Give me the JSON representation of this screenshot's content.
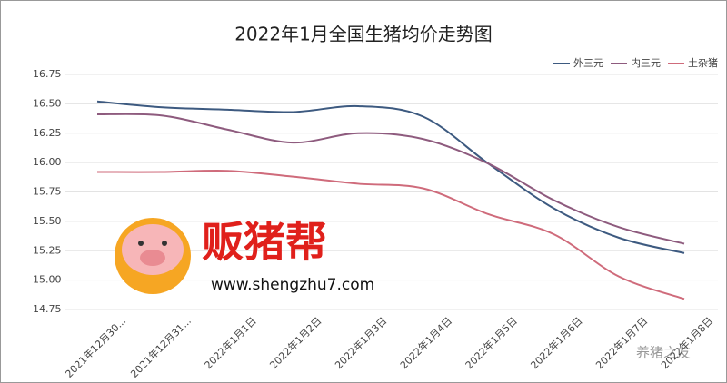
{
  "chart_data": {
    "type": "line",
    "title": "2022年1月全国生猪均价走势图",
    "categories": [
      "2021年12月30...",
      "2021年12月31...",
      "2022年1月1日",
      "2022年1月2日",
      "2022年1月3日",
      "2022年1月4日",
      "2022年1月5日",
      "2022年1月6日",
      "2022年1月7日",
      "2022年1月8日"
    ],
    "series": [
      {
        "name": "外三元",
        "color": "#3d5a80",
        "values": [
          16.52,
          16.47,
          16.45,
          16.43,
          16.48,
          16.39,
          15.99,
          15.61,
          15.36,
          15.23
        ]
      },
      {
        "name": "内三元",
        "color": "#8e5b7e",
        "values": [
          16.41,
          16.4,
          16.28,
          16.17,
          16.25,
          16.2,
          15.99,
          15.68,
          15.45,
          15.31
        ]
      },
      {
        "name": "土杂猪",
        "color": "#cf6b7b",
        "values": [
          15.92,
          15.92,
          15.93,
          15.88,
          15.82,
          15.78,
          15.56,
          15.39,
          15.03,
          14.84
        ]
      }
    ],
    "ylim": [
      14.75,
      16.75
    ],
    "yticks": [
      14.75,
      {
        "value": 15,
        "label": "15.00"
      },
      15.25,
      {
        "value": 15.5,
        "label": "15.50"
      },
      15.75,
      {
        "value": 16,
        "label": "16.00"
      },
      16.25,
      {
        "value": 16.5,
        "label": "16.50"
      },
      16.75
    ],
    "grid": true,
    "smooth": true,
    "legend_position": "top-right",
    "annotations": [
      "贩猪帮",
      "www.shengzhu7.com",
      "养猪之友"
    ]
  }
}
